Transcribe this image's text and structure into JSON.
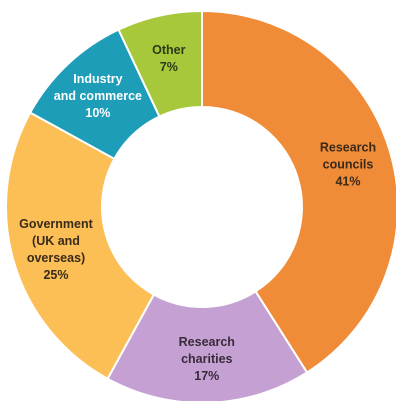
{
  "chart_data": {
    "type": "pie",
    "variant": "donut",
    "title": "",
    "legend": "none",
    "slices": [
      {
        "label_lines": [
          "Research",
          "councils"
        ],
        "value": 41,
        "value_label": "41%",
        "color": "#F08B37",
        "text_color": "#3a2a1a"
      },
      {
        "label_lines": [
          "Research",
          "charities"
        ],
        "value": 17,
        "value_label": "17%",
        "color": "#C4A1D2",
        "text_color": "#3a2a3a"
      },
      {
        "label_lines": [
          "Government",
          "(UK and",
          "overseas)"
        ],
        "value": 25,
        "value_label": "25%",
        "color": "#FBBF55",
        "text_color": "#3a2a1a"
      },
      {
        "label_lines": [
          "Industry",
          "and commerce"
        ],
        "value": 10,
        "value_label": "10%",
        "color": "#1D9DB7",
        "text_color": "#ffffff"
      },
      {
        "label_lines": [
          "Other"
        ],
        "value": 7,
        "value_label": "7%",
        "color": "#A7C83A",
        "text_color": "#2a3a1a"
      }
    ]
  }
}
